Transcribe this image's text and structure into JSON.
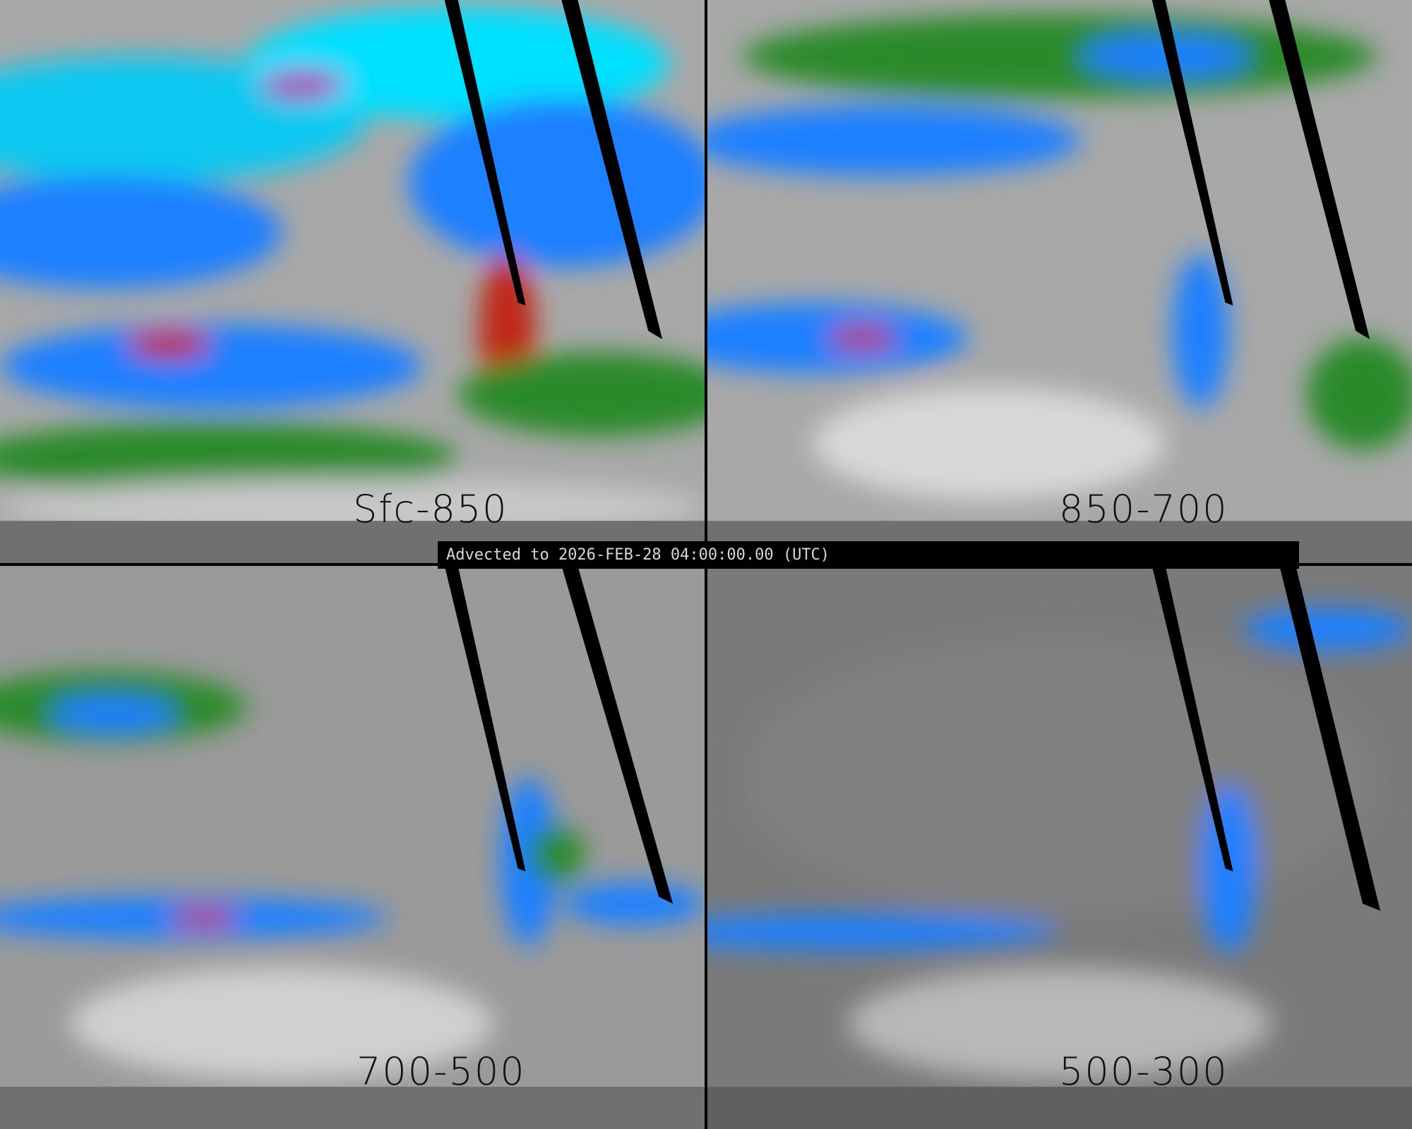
{
  "banner": {
    "text": "Advected to 2026-FEB-28 04:00:00.00 (UTC)"
  },
  "panels": [
    {
      "label": "Sfc-850"
    },
    {
      "label": "850-700"
    },
    {
      "label": "700-500"
    },
    {
      "label": "500-300"
    }
  ],
  "colors": {
    "background_gray": "#9a9a9a",
    "low": "#2a8a2a",
    "mid": "#1e90ff",
    "high": "#00e0ff",
    "peak_magenta": "#b020b0",
    "peak_red": "#d02010",
    "no_data": "#000000",
    "coastline": "#000000"
  }
}
